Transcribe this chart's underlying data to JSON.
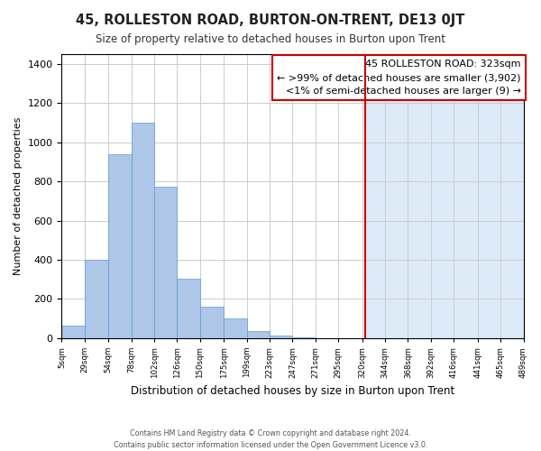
{
  "title": "45, ROLLESTON ROAD, BURTON-ON-TRENT, DE13 0JT",
  "subtitle": "Size of property relative to detached houses in Burton upon Trent",
  "xlabel": "Distribution of detached houses by size in Burton upon Trent",
  "ylabel": "Number of detached properties",
  "footnote1": "Contains HM Land Registry data © Crown copyright and database right 2024.",
  "footnote2": "Contains public sector information licensed under the Open Government Licence v3.0.",
  "bar_edges": [
    5,
    29,
    54,
    78,
    102,
    126,
    150,
    175,
    199,
    223,
    247,
    271,
    295,
    320,
    344,
    368,
    392,
    416,
    441,
    465,
    489
  ],
  "bar_heights": [
    65,
    400,
    940,
    1100,
    775,
    305,
    160,
    100,
    35,
    15,
    5,
    0,
    0,
    0,
    0,
    0,
    0,
    0,
    0,
    0
  ],
  "bar_color": "#aec6e8",
  "bar_edgecolor": "#5a9fd4",
  "vline_x": 323,
  "vline_color": "#cc0000",
  "ylim": [
    0,
    1450
  ],
  "yticks": [
    0,
    200,
    400,
    600,
    800,
    1000,
    1200,
    1400
  ],
  "xtick_labels": [
    "5sqm",
    "29sqm",
    "54sqm",
    "78sqm",
    "102sqm",
    "126sqm",
    "150sqm",
    "175sqm",
    "199sqm",
    "223sqm",
    "247sqm",
    "271sqm",
    "295sqm",
    "320sqm",
    "344sqm",
    "368sqm",
    "392sqm",
    "416sqm",
    "441sqm",
    "465sqm",
    "489sqm"
  ],
  "annotation_title": "45 ROLLESTON ROAD: 323sqm",
  "annotation_line1": "← >99% of detached houses are smaller (3,902)",
  "annotation_line2": "<1% of semi-detached houses are larger (9) →",
  "annotation_box_color": "#ffffff",
  "annotation_box_edgecolor": "#cc0000",
  "shade_color": "#dce9f7",
  "background_color": "#ffffff",
  "grid_color": "#cccccc"
}
